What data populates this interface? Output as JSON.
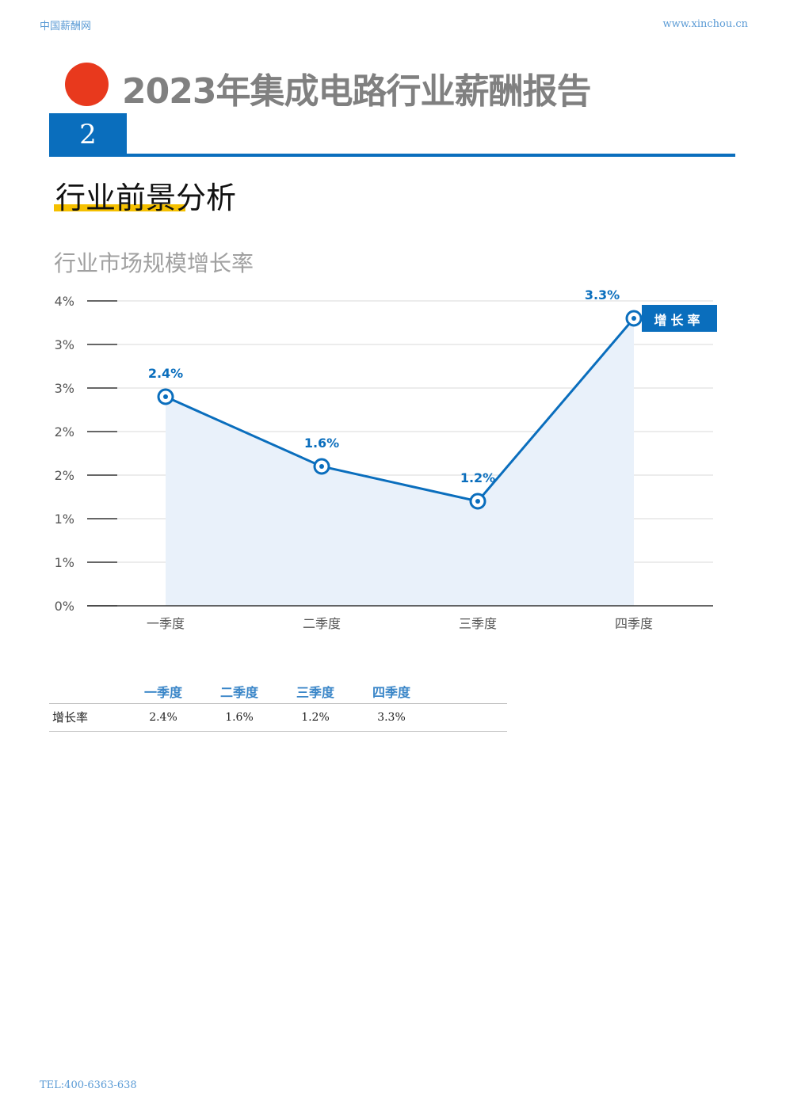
{
  "header": {
    "left": "中国薪酬网",
    "right": "www.xinchou.cn"
  },
  "report_title": "2023年集成电路行业薪酬报告",
  "section_number": "2",
  "section_title": "行业前景分析",
  "chart_title": "行业市场规模增长率",
  "colors": {
    "accent": "#0a6ebd",
    "title_dot": "#e8391d",
    "underline": "#f5c000",
    "area_fill": "#e9f1fa"
  },
  "chart_data": {
    "type": "line",
    "categories": [
      "一季度",
      "二季度",
      "三季度",
      "四季度"
    ],
    "series": [
      {
        "name": "增长率",
        "values": [
          2.4,
          1.6,
          1.2,
          3.3
        ],
        "labels": [
          "2.4%",
          "1.6%",
          "1.2%",
          "3.3%"
        ]
      }
    ],
    "y_ticks": [
      0,
      0.5,
      1,
      1.5,
      2,
      2.5,
      3,
      3.5
    ],
    "y_tick_labels": [
      "0%",
      "1%",
      "1%",
      "2%",
      "2%",
      "3%",
      "3%",
      "4%"
    ],
    "ylim": [
      0,
      3.5
    ],
    "grid": true,
    "area_fill": true,
    "legend_position": "top-right"
  },
  "table": {
    "headers": [
      "",
      "一季度",
      "二季度",
      "三季度",
      "四季度",
      ""
    ],
    "rows": [
      {
        "label": "增长率",
        "values": [
          "2.4%",
          "1.6%",
          "1.2%",
          "3.3%"
        ]
      }
    ]
  },
  "footer": "TEL:400-6363-638"
}
